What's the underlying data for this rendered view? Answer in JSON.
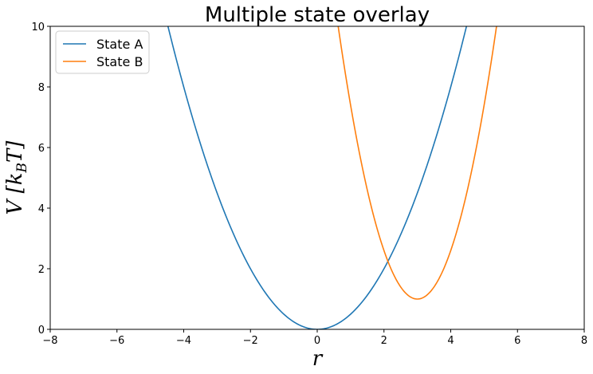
{
  "chart_data": {
    "type": "line",
    "title": "Multiple state overlay",
    "xlabel": "r",
    "ylabel_main": "V [k",
    "ylabel_sub": "B",
    "ylabel_end": "T]",
    "xlim": [
      -8,
      8
    ],
    "ylim": [
      0,
      10
    ],
    "xticks": [
      -8,
      -6,
      -4,
      -2,
      0,
      2,
      4,
      6,
      8
    ],
    "yticks": [
      0,
      2,
      4,
      6,
      8,
      10
    ],
    "xtick_labels": [
      "−8",
      "−6",
      "−4",
      "−2",
      "0",
      "2",
      "4",
      "6",
      "8"
    ],
    "ytick_labels": [
      "0",
      "2",
      "4",
      "6",
      "8",
      "10"
    ],
    "grid": false,
    "legend_position": "top-left",
    "series": [
      {
        "name": "State A",
        "color": "#1f77b4",
        "x": [
          -4.5,
          -4,
          -3.5,
          -3,
          -2.5,
          -2,
          -1.5,
          -1,
          -0.5,
          0,
          0.5,
          1,
          1.5,
          2,
          2.5,
          3,
          3.5,
          4,
          4.5
        ],
        "y": [
          10.125,
          8,
          6.125,
          4.5,
          3.125,
          2,
          1.125,
          0.5,
          0.125,
          0,
          0.125,
          0.5,
          1.125,
          2,
          3.125,
          4.5,
          6.125,
          8,
          10.125
        ]
      },
      {
        "name": "State B",
        "color": "#ff7f0e",
        "x": [
          0.55,
          0.75,
          1,
          1.25,
          1.5,
          1.75,
          2,
          2.25,
          2.5,
          2.75,
          3,
          3.25,
          3.5,
          3.75,
          4,
          4.25,
          4.5,
          4.75,
          5,
          5.25,
          5.45
        ],
        "y": [
          10.6,
          9.1,
          7.4,
          5.9,
          4.6,
          3.5,
          2.6,
          1.9,
          1.4,
          1.1,
          1.0,
          1.1,
          1.4,
          1.9,
          2.6,
          3.5,
          4.6,
          5.9,
          7.4,
          9.1,
          10.6
        ]
      }
    ]
  }
}
